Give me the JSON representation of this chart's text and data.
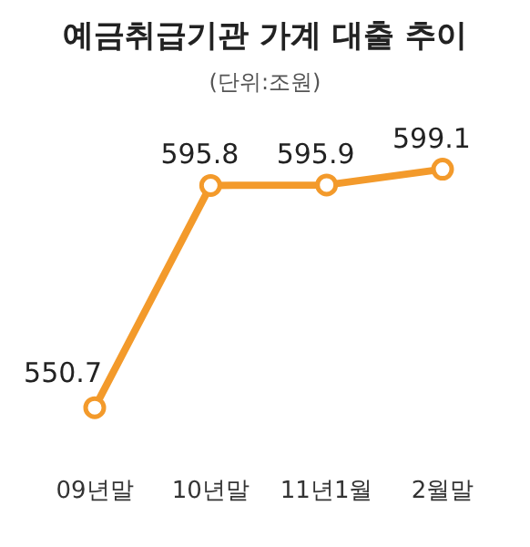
{
  "chart_data": {
    "type": "line",
    "title": "예금취급기관 가계 대출 추이",
    "subtitle": "(단위:조원)",
    "categories": [
      "09년말",
      "10년말",
      "11년1월",
      "2월말"
    ],
    "values": [
      550.7,
      595.8,
      595.9,
      599.1
    ],
    "color": "#f39a2b",
    "marker": "circle",
    "data_labels": true,
    "grid": false
  }
}
